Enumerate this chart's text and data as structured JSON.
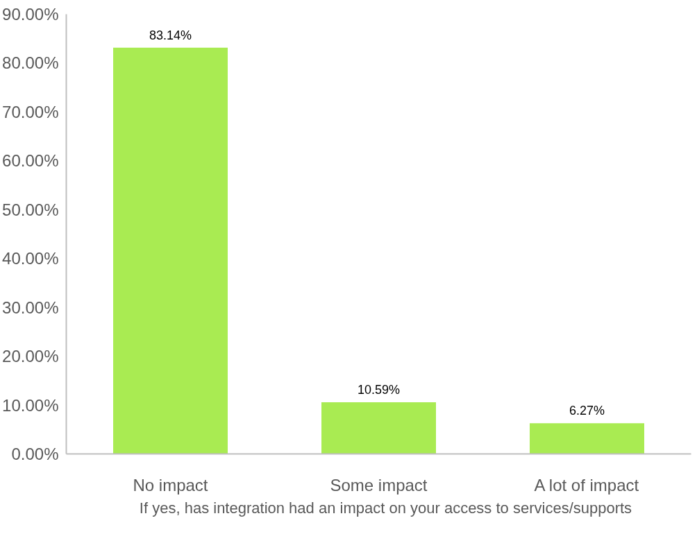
{
  "chart_data": {
    "type": "bar",
    "categories": [
      "No impact",
      "Some impact",
      "A lot of impact"
    ],
    "series": [
      {
        "name": "If yes, has integration had an impact on your access to services/supports",
        "color": "#a9eb52",
        "values": [
          83.14,
          10.59,
          6.27
        ]
      }
    ],
    "value_labels": [
      "83.14%",
      "10.59%",
      "6.27%"
    ],
    "ylim": [
      0,
      90
    ],
    "yticks": [
      {
        "value": 0,
        "label": "0.00%"
      },
      {
        "value": 10,
        "label": "10.00%"
      },
      {
        "value": 20,
        "label": "20.00%"
      },
      {
        "value": 30,
        "label": "30.00%"
      },
      {
        "value": 40,
        "label": "40.00%"
      },
      {
        "value": 50,
        "label": "50.00%"
      },
      {
        "value": 60,
        "label": "60.00%"
      },
      {
        "value": 70,
        "label": "70.00%"
      },
      {
        "value": 80,
        "label": "80.00%"
      },
      {
        "value": 90,
        "label": "90.00%"
      }
    ],
    "grid": false,
    "legend": "bottom"
  }
}
